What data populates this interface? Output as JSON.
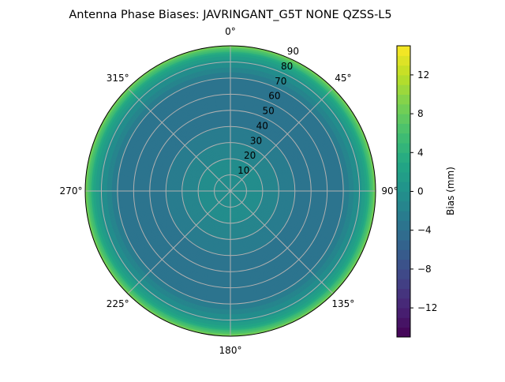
{
  "chart_data": {
    "type": "heatmap",
    "subtype": "polar-contour",
    "title": "Antenna Phase Biases: JAVRINGANT_G5T  NONE QZSS-L5",
    "theta_direction": "clockwise",
    "theta_zero": "top",
    "theta_tick_labels": [
      "0°",
      "45°",
      "90°",
      "135°",
      "180°",
      "225°",
      "270°",
      "315°"
    ],
    "theta_ticks": [
      0,
      45,
      90,
      135,
      180,
      225,
      270,
      315
    ],
    "r_ticks": [
      10,
      20,
      30,
      40,
      50,
      60,
      70,
      80,
      90
    ],
    "r_tick_labels": [
      "10",
      "20",
      "30",
      "40",
      "50",
      "60",
      "70",
      "80",
      "90"
    ],
    "rlim": [
      0,
      90
    ],
    "grid": true,
    "radial_profile": {
      "zenith_deg": [
        0,
        10,
        20,
        30,
        40,
        50,
        60,
        70,
        80,
        85,
        90
      ],
      "bias_mm": [
        0,
        -0.5,
        -1,
        -2,
        -3,
        -3.5,
        -4,
        -3,
        0,
        3,
        9
      ]
    },
    "colorbar": {
      "label": "Bias (mm)",
      "colormap": "viridis",
      "range": [
        -15,
        15
      ],
      "level_step": 1,
      "ticks": [
        -12,
        -8,
        -4,
        0,
        4,
        8,
        12
      ],
      "tick_labels": [
        "−12",
        "−8",
        "−4",
        "0",
        "4",
        "8",
        "12"
      ]
    }
  }
}
